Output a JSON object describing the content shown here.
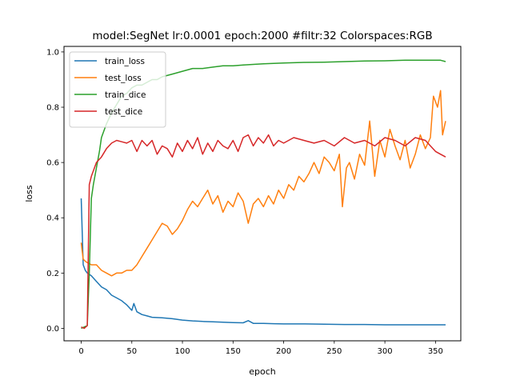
{
  "chart_data": {
    "type": "line",
    "title": "model:SegNet lr:0.0001 epoch:2000 #filtr:32 Colorspaces:RGB",
    "xlabel": "epoch",
    "ylabel": "loss",
    "xlim": [
      -17,
      375
    ],
    "ylim": [
      -0.045,
      1.02
    ],
    "xticks": [
      0,
      50,
      100,
      150,
      200,
      250,
      300,
      350
    ],
    "yticks": [
      0.0,
      0.2,
      0.4,
      0.6,
      0.8,
      1.0
    ],
    "grid": false,
    "legend_position": "upper-left",
    "series": [
      {
        "name": "train_loss",
        "color": "#1f77b4",
        "points": [
          [
            0,
            0.47
          ],
          [
            2,
            0.23
          ],
          [
            4,
            0.21
          ],
          [
            6,
            0.2
          ],
          [
            10,
            0.19
          ],
          [
            15,
            0.17
          ],
          [
            20,
            0.15
          ],
          [
            25,
            0.14
          ],
          [
            30,
            0.12
          ],
          [
            35,
            0.11
          ],
          [
            40,
            0.1
          ],
          [
            45,
            0.085
          ],
          [
            50,
            0.065
          ],
          [
            52,
            0.09
          ],
          [
            55,
            0.06
          ],
          [
            60,
            0.05
          ],
          [
            65,
            0.045
          ],
          [
            70,
            0.04
          ],
          [
            80,
            0.038
          ],
          [
            90,
            0.035
          ],
          [
            100,
            0.03
          ],
          [
            110,
            0.027
          ],
          [
            120,
            0.025
          ],
          [
            130,
            0.024
          ],
          [
            140,
            0.022
          ],
          [
            150,
            0.021
          ],
          [
            160,
            0.02
          ],
          [
            165,
            0.028
          ],
          [
            170,
            0.018
          ],
          [
            180,
            0.018
          ],
          [
            190,
            0.017
          ],
          [
            200,
            0.016
          ],
          [
            220,
            0.016
          ],
          [
            240,
            0.015
          ],
          [
            260,
            0.014
          ],
          [
            280,
            0.014
          ],
          [
            300,
            0.013
          ],
          [
            320,
            0.013
          ],
          [
            340,
            0.013
          ],
          [
            360,
            0.013
          ]
        ]
      },
      {
        "name": "test_loss",
        "color": "#ff7f0e",
        "points": [
          [
            0,
            0.31
          ],
          [
            2,
            0.25
          ],
          [
            5,
            0.24
          ],
          [
            10,
            0.23
          ],
          [
            15,
            0.23
          ],
          [
            20,
            0.21
          ],
          [
            25,
            0.2
          ],
          [
            30,
            0.19
          ],
          [
            35,
            0.2
          ],
          [
            40,
            0.2
          ],
          [
            45,
            0.21
          ],
          [
            50,
            0.21
          ],
          [
            55,
            0.23
          ],
          [
            60,
            0.26
          ],
          [
            65,
            0.29
          ],
          [
            70,
            0.32
          ],
          [
            75,
            0.35
          ],
          [
            80,
            0.38
          ],
          [
            85,
            0.37
          ],
          [
            90,
            0.34
          ],
          [
            95,
            0.36
          ],
          [
            100,
            0.39
          ],
          [
            105,
            0.43
          ],
          [
            110,
            0.46
          ],
          [
            115,
            0.44
          ],
          [
            120,
            0.47
          ],
          [
            125,
            0.5
          ],
          [
            130,
            0.45
          ],
          [
            135,
            0.48
          ],
          [
            140,
            0.42
          ],
          [
            145,
            0.46
          ],
          [
            150,
            0.44
          ],
          [
            155,
            0.49
          ],
          [
            160,
            0.46
          ],
          [
            165,
            0.38
          ],
          [
            170,
            0.45
          ],
          [
            175,
            0.47
          ],
          [
            180,
            0.44
          ],
          [
            185,
            0.48
          ],
          [
            190,
            0.45
          ],
          [
            195,
            0.5
          ],
          [
            200,
            0.47
          ],
          [
            205,
            0.52
          ],
          [
            210,
            0.5
          ],
          [
            215,
            0.55
          ],
          [
            220,
            0.53
          ],
          [
            225,
            0.56
          ],
          [
            230,
            0.6
          ],
          [
            235,
            0.56
          ],
          [
            240,
            0.62
          ],
          [
            245,
            0.6
          ],
          [
            250,
            0.57
          ],
          [
            255,
            0.63
          ],
          [
            258,
            0.44
          ],
          [
            262,
            0.58
          ],
          [
            265,
            0.6
          ],
          [
            270,
            0.54
          ],
          [
            275,
            0.63
          ],
          [
            280,
            0.59
          ],
          [
            285,
            0.75
          ],
          [
            290,
            0.55
          ],
          [
            295,
            0.68
          ],
          [
            300,
            0.62
          ],
          [
            305,
            0.72
          ],
          [
            310,
            0.66
          ],
          [
            315,
            0.61
          ],
          [
            320,
            0.68
          ],
          [
            325,
            0.58
          ],
          [
            330,
            0.63
          ],
          [
            335,
            0.7
          ],
          [
            340,
            0.65
          ],
          [
            345,
            0.69
          ],
          [
            348,
            0.84
          ],
          [
            352,
            0.8
          ],
          [
            355,
            0.86
          ],
          [
            357,
            0.7
          ],
          [
            360,
            0.75
          ]
        ]
      },
      {
        "name": "train_dice",
        "color": "#2ca02c",
        "points": [
          [
            0,
            0.0
          ],
          [
            3,
            0.005
          ],
          [
            6,
            0.01
          ],
          [
            8,
            0.2
          ],
          [
            10,
            0.47
          ],
          [
            12,
            0.52
          ],
          [
            15,
            0.58
          ],
          [
            18,
            0.64
          ],
          [
            20,
            0.69
          ],
          [
            25,
            0.74
          ],
          [
            30,
            0.78
          ],
          [
            35,
            0.81
          ],
          [
            40,
            0.84
          ],
          [
            45,
            0.85
          ],
          [
            50,
            0.87
          ],
          [
            55,
            0.88
          ],
          [
            60,
            0.88
          ],
          [
            65,
            0.89
          ],
          [
            70,
            0.9
          ],
          [
            75,
            0.9
          ],
          [
            80,
            0.91
          ],
          [
            90,
            0.92
          ],
          [
            100,
            0.93
          ],
          [
            110,
            0.94
          ],
          [
            120,
            0.94
          ],
          [
            130,
            0.945
          ],
          [
            140,
            0.95
          ],
          [
            150,
            0.95
          ],
          [
            160,
            0.953
          ],
          [
            170,
            0.955
          ],
          [
            180,
            0.957
          ],
          [
            200,
            0.96
          ],
          [
            220,
            0.962
          ],
          [
            240,
            0.963
          ],
          [
            260,
            0.965
          ],
          [
            280,
            0.967
          ],
          [
            300,
            0.968
          ],
          [
            320,
            0.97
          ],
          [
            340,
            0.97
          ],
          [
            355,
            0.97
          ],
          [
            360,
            0.965
          ]
        ]
      },
      {
        "name": "test_dice",
        "color": "#d62728",
        "points": [
          [
            0,
            0.005
          ],
          [
            3,
            0.0
          ],
          [
            6,
            0.01
          ],
          [
            8,
            0.52
          ],
          [
            10,
            0.55
          ],
          [
            15,
            0.6
          ],
          [
            20,
            0.62
          ],
          [
            25,
            0.65
          ],
          [
            30,
            0.67
          ],
          [
            35,
            0.68
          ],
          [
            40,
            0.675
          ],
          [
            45,
            0.67
          ],
          [
            50,
            0.68
          ],
          [
            55,
            0.64
          ],
          [
            60,
            0.68
          ],
          [
            65,
            0.66
          ],
          [
            70,
            0.68
          ],
          [
            75,
            0.63
          ],
          [
            80,
            0.66
          ],
          [
            85,
            0.65
          ],
          [
            90,
            0.62
          ],
          [
            95,
            0.67
          ],
          [
            100,
            0.64
          ],
          [
            105,
            0.68
          ],
          [
            110,
            0.65
          ],
          [
            115,
            0.69
          ],
          [
            120,
            0.63
          ],
          [
            125,
            0.67
          ],
          [
            130,
            0.64
          ],
          [
            135,
            0.68
          ],
          [
            140,
            0.66
          ],
          [
            145,
            0.65
          ],
          [
            150,
            0.68
          ],
          [
            155,
            0.64
          ],
          [
            160,
            0.69
          ],
          [
            165,
            0.7
          ],
          [
            170,
            0.66
          ],
          [
            175,
            0.69
          ],
          [
            180,
            0.67
          ],
          [
            185,
            0.7
          ],
          [
            190,
            0.66
          ],
          [
            195,
            0.68
          ],
          [
            200,
            0.67
          ],
          [
            210,
            0.69
          ],
          [
            220,
            0.68
          ],
          [
            230,
            0.67
          ],
          [
            240,
            0.68
          ],
          [
            250,
            0.66
          ],
          [
            260,
            0.69
          ],
          [
            270,
            0.67
          ],
          [
            280,
            0.68
          ],
          [
            290,
            0.66
          ],
          [
            300,
            0.69
          ],
          [
            310,
            0.68
          ],
          [
            320,
            0.66
          ],
          [
            330,
            0.69
          ],
          [
            340,
            0.68
          ],
          [
            350,
            0.64
          ],
          [
            355,
            0.63
          ],
          [
            360,
            0.62
          ]
        ]
      }
    ]
  }
}
